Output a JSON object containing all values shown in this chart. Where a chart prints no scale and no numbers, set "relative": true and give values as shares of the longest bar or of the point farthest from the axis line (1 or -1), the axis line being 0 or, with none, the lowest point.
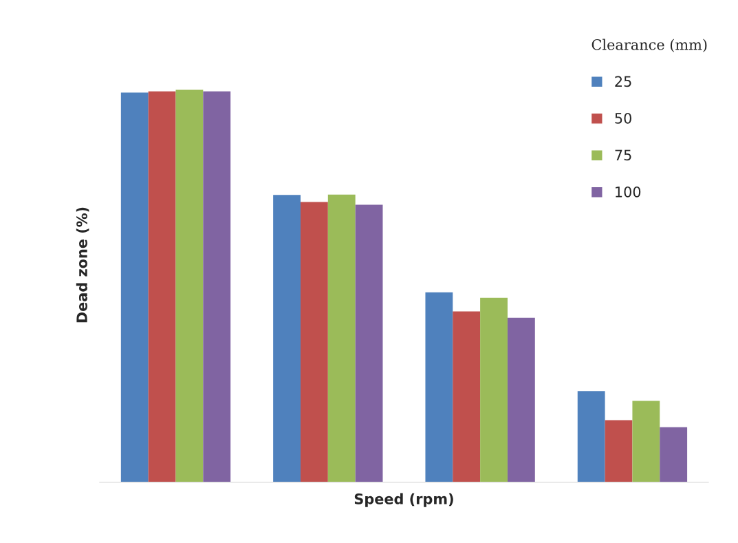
{
  "chart_data": {
    "type": "bar",
    "relative": true,
    "xlabel": "Speed (rpm)",
    "ylabel": "Dead zone (%)",
    "legend_title": "Clearance (mm)",
    "legend": "top right",
    "grid": false,
    "categories": [
      null,
      null,
      null,
      null
    ],
    "series": [
      {
        "name": "25",
        "color": "#4f81bd",
        "values": [
          0.993,
          0.732,
          0.484,
          0.232
        ]
      },
      {
        "name": "50",
        "color": "#c0504d",
        "values": [
          0.996,
          0.714,
          0.435,
          0.158
        ]
      },
      {
        "name": "75",
        "color": "#9bbb59",
        "values": [
          1,
          0.733,
          0.47,
          0.207
        ]
      },
      {
        "name": "100",
        "color": "#8064a2",
        "values": [
          0.996,
          0.707,
          0.419,
          0.14
        ]
      }
    ]
  }
}
